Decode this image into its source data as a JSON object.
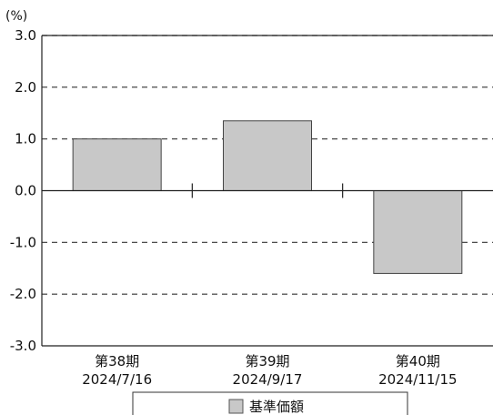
{
  "chart_data": {
    "type": "bar",
    "unit_label": "(%)",
    "categories": [
      {
        "period": "第38期",
        "date": "2024/7/16"
      },
      {
        "period": "第39期",
        "date": "2024/9/17"
      },
      {
        "period": "第40期",
        "date": "2024/11/15"
      }
    ],
    "series": [
      {
        "name": "基準価額",
        "values": [
          1.0,
          1.35,
          -1.6
        ],
        "color": "#c8c8c8"
      }
    ],
    "ylim": [
      -3.0,
      3.0
    ],
    "yticks": [
      "3.0",
      "2.0",
      "1.0",
      "0.0",
      "-1.0",
      "-2.0",
      "-3.0"
    ],
    "grid": "dashed horizontal",
    "legend_position": "bottom-center"
  }
}
